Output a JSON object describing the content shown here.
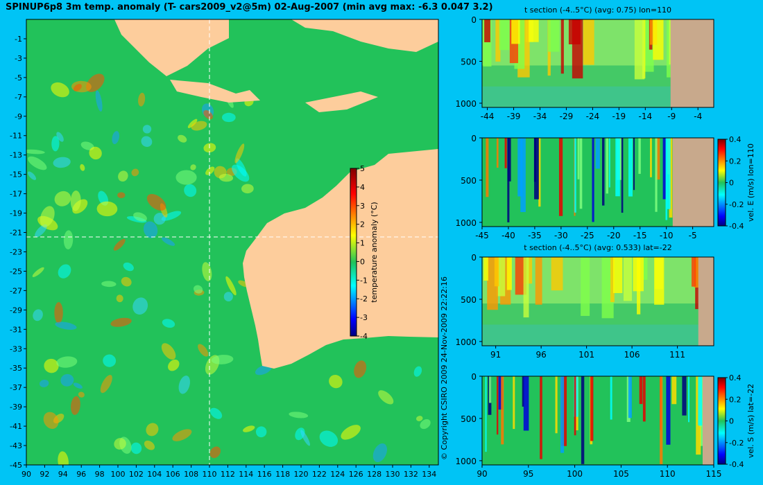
{
  "title": "SPINUP6p8 3m temp. anomaly (T- cars2009_v2@5m) 02-Aug-2007 (min avg max: -6.3 0.047 3.2)",
  "copyright": "© Copyright CSIRO 2009  24-Nov-2009 22:22:16",
  "colors": {
    "background": "#00c4f5",
    "land": "#fdcd9c",
    "land_section": "#c8a98c",
    "ocean_base": "#22c25a"
  },
  "chart_data": [
    {
      "id": "map",
      "type": "heatmap",
      "title": "SPINUP6p8 3m temp. anomaly (T- cars2009_v2@5m) 02-Aug-2007 (min avg max: -6.3 0.047 3.2)",
      "x_ticks": [
        90,
        92,
        94,
        96,
        98,
        100,
        102,
        104,
        106,
        108,
        110,
        112,
        114,
        116,
        118,
        120,
        122,
        124,
        126,
        128,
        130,
        132,
        134
      ],
      "y_ticks": [
        -1,
        -3,
        -5,
        -7,
        -9,
        -11,
        -13,
        -15,
        -17,
        -19,
        -21,
        -23,
        -25,
        -27,
        -29,
        -31,
        -33,
        -35,
        -37,
        -39,
        -41,
        -43,
        -45
      ],
      "xlim": [
        90,
        135
      ],
      "ylim": [
        -45,
        1
      ],
      "section_lines": {
        "lon": 110,
        "lat": -22
      },
      "colorbar": {
        "label": "temperature anomaly (°C)",
        "range": [
          -4,
          5
        ],
        "ticks": [
          5,
          4,
          3,
          2,
          1,
          0,
          -1,
          -2,
          -3,
          -4
        ]
      }
    },
    {
      "id": "section-t-lon",
      "type": "heatmap",
      "title": "t section (-4..5°C) (avg: 0.75) lon=110",
      "x_ticks": [
        -44,
        -39,
        -34,
        -29,
        -24,
        -19,
        -14,
        -9,
        -4
      ],
      "y_ticks": [
        0,
        500,
        1000
      ],
      "xlim": [
        -45,
        -1
      ],
      "ylim": [
        1050,
        0
      ]
    },
    {
      "id": "section-u-lon",
      "type": "heatmap",
      "title": "",
      "x_ticks": [
        -45,
        -40,
        -35,
        -30,
        -25,
        -20,
        -15,
        -10,
        -5
      ],
      "y_ticks": [
        0,
        500,
        1000
      ],
      "xlim": [
        -45,
        -1
      ],
      "ylim": [
        1050,
        0
      ],
      "colorbar": {
        "label": "vel. E (m/s) lon=110",
        "range": [
          -0.4,
          0.4
        ],
        "ticks": [
          0.4,
          0.2,
          0,
          -0.2,
          -0.4
        ]
      }
    },
    {
      "id": "section-t-lat",
      "type": "heatmap",
      "title": "t section (-4..5°C) (avg: 0.533) lat=-22",
      "x_ticks": [
        91,
        96,
        101,
        106,
        111
      ],
      "y_ticks": [
        0,
        500,
        1000
      ],
      "xlim": [
        89.5,
        115
      ],
      "ylim": [
        1050,
        0
      ]
    },
    {
      "id": "section-v-lat",
      "type": "heatmap",
      "title": "",
      "x_ticks": [
        90,
        95,
        100,
        105,
        110,
        115
      ],
      "y_ticks": [
        0,
        500,
        1000
      ],
      "xlim": [
        90,
        115
      ],
      "ylim": [
        1050,
        0
      ],
      "colorbar": {
        "label": "vel. S (m/s) lat=-22",
        "range": [
          -0.4,
          0.4
        ],
        "ticks": [
          0.4,
          0.2,
          0,
          -0.2,
          -0.4
        ]
      }
    }
  ]
}
